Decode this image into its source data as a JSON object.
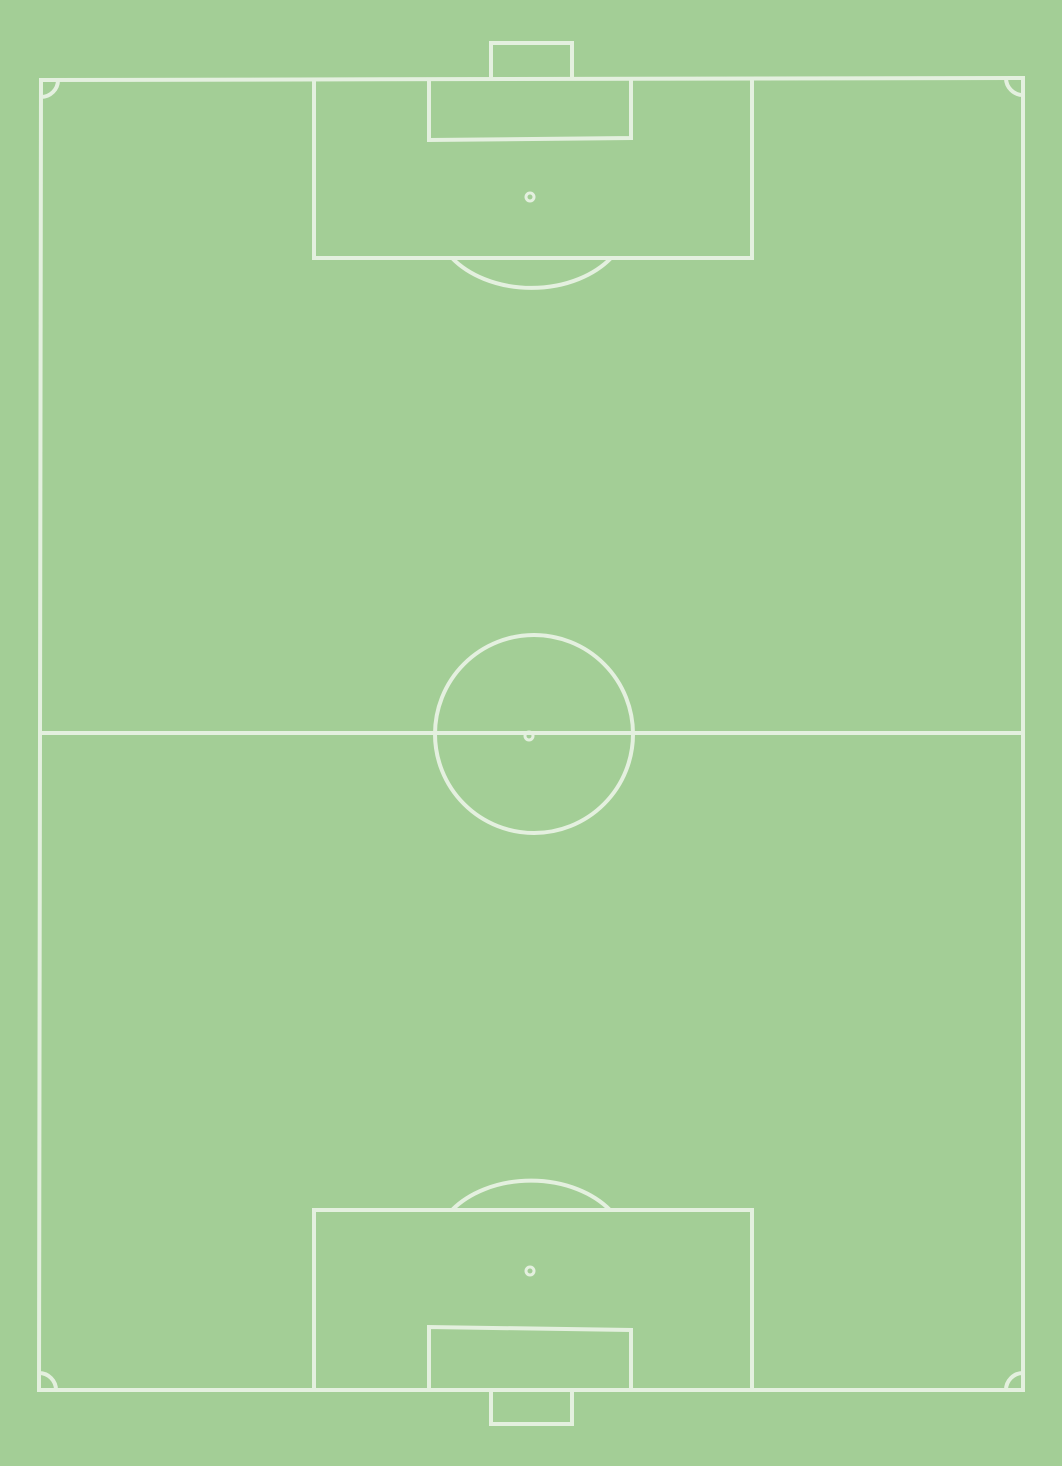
{
  "pitch": {
    "type": "football-pitch",
    "orientation": "vertical",
    "colors": {
      "grass": "#a3ce96",
      "line": "#e4f0df"
    }
  }
}
